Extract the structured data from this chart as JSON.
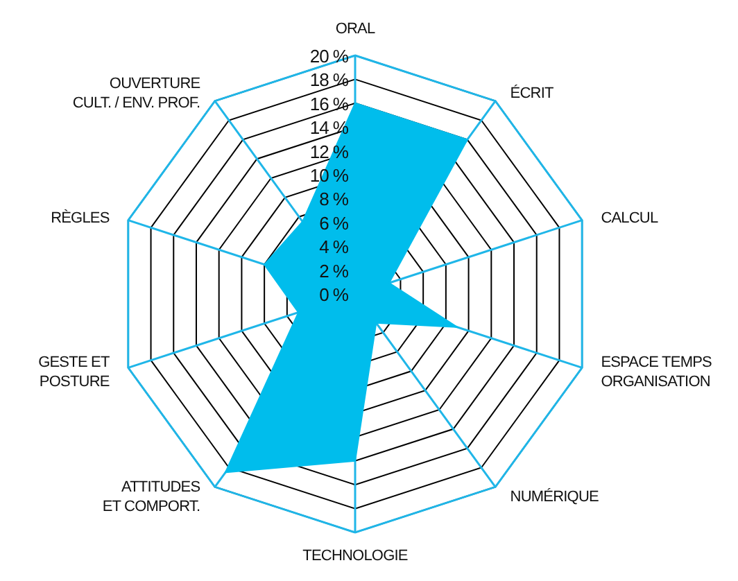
{
  "chart_data": {
    "type": "radar",
    "categories": [
      "ORAL",
      "ÉCRIT",
      "CALCUL",
      "ESPACE TEMPS\nORGANISATION",
      "NUMÉRIQUE",
      "TECHNOLOGIE",
      "ATTITUDES\nET COMPORT.",
      "GESTE ET\nPOSTURE",
      "RÈGLES",
      "OUVERTURE\nCULT. / ENV. PROF."
    ],
    "series": [
      {
        "color": "#00bdec",
        "values": [
          16,
          16,
          3,
          9,
          3,
          14,
          18.5,
          5,
          8,
          7.5
        ]
      }
    ],
    "ylim": [
      0,
      20
    ],
    "yticks": [
      {
        "value": 0,
        "label": "0 %"
      },
      {
        "value": 2,
        "label": "2 %"
      },
      {
        "value": 4,
        "label": "4 %"
      },
      {
        "value": 6,
        "label": "6 %"
      },
      {
        "value": 8,
        "label": "8 %"
      },
      {
        "value": 10,
        "label": "10 %"
      },
      {
        "value": 12,
        "label": "12 %"
      },
      {
        "value": 14,
        "label": "14 %"
      },
      {
        "value": 16,
        "label": "16 %"
      },
      {
        "value": 18,
        "label": "18 %"
      },
      {
        "value": 20,
        "label": "20 %"
      }
    ],
    "grid": true
  }
}
